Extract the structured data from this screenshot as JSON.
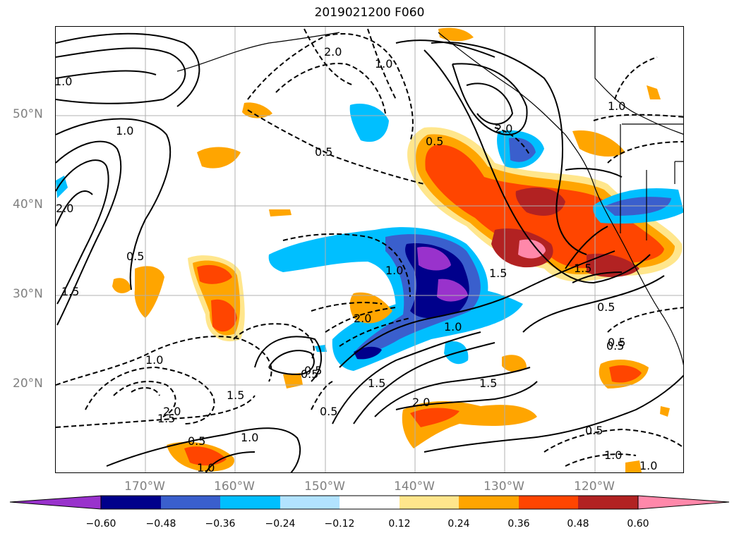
{
  "title": "2019021200 F060",
  "lat_labels": [
    "50°N",
    "40°N",
    "30°N",
    "20°N"
  ],
  "lon_labels": [
    "170°W",
    "160°W",
    "150°W",
    "140°W",
    "130°W",
    "120°W"
  ],
  "colorbar": {
    "ticks": [
      "−0.60",
      "−0.48",
      "−0.36",
      "−0.24",
      "−0.12",
      "0.12",
      "0.24",
      "0.36",
      "0.48",
      "0.60"
    ],
    "colors": [
      "#9932cc",
      "#00008b",
      "#3a5fcd",
      "#00bfff",
      "#b2e3ff",
      "#ffffff",
      "#ffe68c",
      "#ffa500",
      "#ff4500",
      "#b22222",
      "#ff88aa"
    ]
  },
  "contour_labels": {
    "solid": [
      "1.0",
      "1.0",
      "2.0",
      "0.5",
      "1.5",
      "2.0",
      "0.5",
      "0.5",
      "1.5",
      "1.5",
      "2.0",
      "1.5",
      "0.5",
      "1.0",
      "1.0",
      "0.5",
      "1.0",
      "1.5"
    ],
    "dashed": [
      "2.0",
      "1.0",
      "0.5",
      "0.5",
      "1.0",
      "2.0",
      "1.0",
      "1.5",
      "2.0",
      "0.5",
      "0.5",
      "1.5",
      "1.0",
      "0.5",
      "1.0",
      "0.5",
      "1.0"
    ]
  },
  "colors": {
    "grid": "#b0b0b0",
    "axis_label": "#808080",
    "contour": "#000000"
  }
}
